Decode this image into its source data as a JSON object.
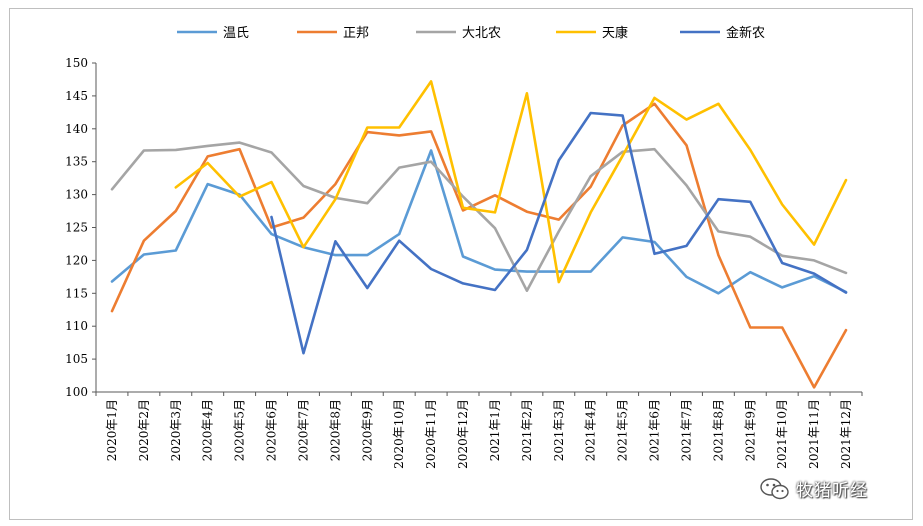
{
  "chart_data": {
    "type": "line",
    "title": "",
    "xlabel": "",
    "ylabel": "",
    "ylim": [
      100,
      150
    ],
    "yticks": [
      100,
      105,
      110,
      115,
      120,
      125,
      130,
      135,
      140,
      145,
      150
    ],
    "grid": false,
    "legend_position": "top",
    "categories": [
      "2020年1月",
      "2020年2月",
      "2020年3月",
      "2020年4月",
      "2020年5月",
      "2020年6月",
      "2020年7月",
      "2020年8月",
      "2020年9月",
      "2020年10月",
      "2020年11月",
      "2020年12月",
      "2021年1月",
      "2021年2月",
      "2021年3月",
      "2021年4月",
      "2021年5月",
      "2021年6月",
      "2021年7月",
      "2021年8月",
      "2021年9月",
      "2021年10月",
      "2021年11月",
      "2021年12月"
    ],
    "series": [
      {
        "name": "温氏",
        "color": "#5b9bd5",
        "values": [
          116.8,
          120.9,
          121.5,
          131.6,
          130.0,
          124.0,
          122.0,
          120.8,
          120.8,
          124.0,
          136.7,
          120.6,
          118.6,
          118.3,
          118.3,
          118.3,
          123.5,
          122.8,
          117.5,
          115.0,
          118.2,
          115.9,
          117.6,
          115.2
        ]
      },
      {
        "name": "正邦",
        "color": "#ed7d31",
        "values": [
          112.3,
          123.0,
          127.5,
          135.8,
          136.9,
          125.0,
          126.5,
          131.6,
          139.5,
          139.0,
          139.6,
          127.6,
          129.9,
          127.4,
          126.2,
          131.2,
          140.5,
          143.8,
          137.5,
          120.8,
          109.8,
          109.8,
          100.7,
          109.4
        ]
      },
      {
        "name": "大北农",
        "color": "#a5a5a5",
        "values": [
          130.8,
          136.7,
          136.8,
          137.4,
          137.9,
          136.4,
          131.3,
          129.5,
          128.7,
          134.1,
          135.0,
          129.7,
          124.9,
          115.4,
          124.4,
          132.8,
          136.5,
          136.9,
          131.4,
          124.4,
          123.6,
          120.7,
          120.0,
          118.1
        ]
      },
      {
        "name": "天康",
        "color": "#ffc000",
        "values": [
          null,
          null,
          131.1,
          134.8,
          129.7,
          131.9,
          122.0,
          129.3,
          140.2,
          140.2,
          147.2,
          128.0,
          127.3,
          145.4,
          116.7,
          127.3,
          135.9,
          144.7,
          141.4,
          143.8,
          136.8,
          128.5,
          122.4,
          132.2
        ]
      },
      {
        "name": "金新农",
        "color": "#4472c4",
        "values": [
          null,
          null,
          null,
          null,
          null,
          126.6,
          105.9,
          122.9,
          115.8,
          123.0,
          118.7,
          116.5,
          115.5,
          121.6,
          135.2,
          142.4,
          142.0,
          121.0,
          122.2,
          129.3,
          128.9,
          119.6,
          118.0,
          115.1
        ]
      }
    ]
  },
  "watermark": {
    "text": "牧猪听经",
    "icon": "wechat-icon"
  }
}
